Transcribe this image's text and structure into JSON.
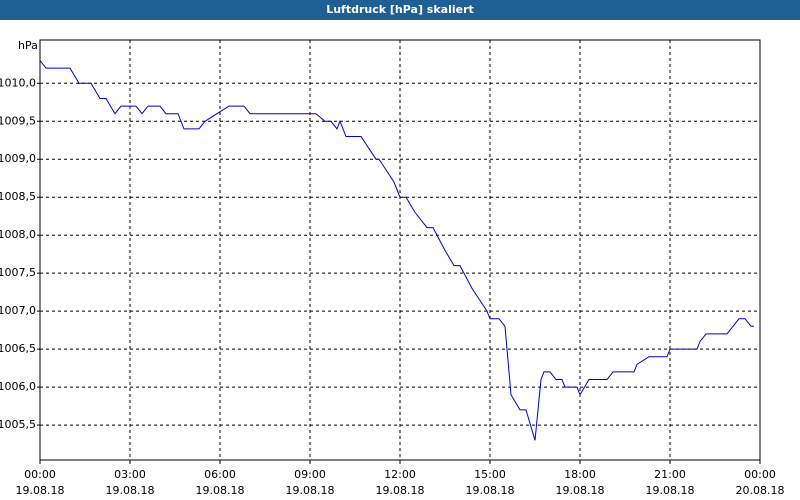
{
  "chart_data": {
    "type": "line",
    "title": "Luftdruck [hPa] skaliert",
    "y_label": "hPa",
    "x": [
      0,
      0.2,
      1.0,
      1.3,
      1.7,
      2.0,
      2.2,
      2.5,
      2.7,
      3.2,
      3.4,
      3.6,
      4.0,
      4.2,
      4.6,
      4.8,
      5.3,
      5.5,
      5.9,
      6.3,
      6.8,
      7.0,
      9.2,
      9.5,
      9.7,
      9.9,
      10.0,
      10.2,
      10.7,
      11.2,
      11.3,
      11.8,
      12.0,
      12.2,
      12.5,
      12.9,
      13.1,
      13.5,
      13.8,
      14.0,
      14.4,
      14.9,
      15.0,
      15.3,
      15.5,
      15.7,
      16.0,
      16.2,
      16.5,
      16.7,
      16.8,
      17.0,
      17.2,
      17.4,
      17.5,
      17.9,
      18.0,
      18.3,
      18.9,
      19.1,
      19.8,
      19.9,
      20.3,
      20.9,
      21.0,
      21.9,
      22.0,
      22.2,
      22.9,
      23.1,
      23.3,
      23.5,
      23.7,
      23.8
    ],
    "series": [
      {
        "name": "Luftdruck",
        "color": "#0000cc",
        "values": [
          1010.3,
          1010.2,
          1010.2,
          1010.0,
          1010.0,
          1009.8,
          1009.8,
          1009.6,
          1009.7,
          1009.7,
          1009.6,
          1009.7,
          1009.7,
          1009.6,
          1009.6,
          1009.4,
          1009.4,
          1009.5,
          1009.6,
          1009.7,
          1009.7,
          1009.6,
          1009.6,
          1009.5,
          1009.5,
          1009.4,
          1009.5,
          1009.3,
          1009.3,
          1009.0,
          1009.0,
          1008.7,
          1008.5,
          1008.5,
          1008.3,
          1008.1,
          1008.1,
          1007.8,
          1007.6,
          1007.6,
          1007.3,
          1007.0,
          1006.9,
          1006.9,
          1006.8,
          1005.9,
          1005.7,
          1005.7,
          1005.3,
          1006.1,
          1006.2,
          1006.2,
          1006.1,
          1006.1,
          1006.0,
          1006.0,
          1005.9,
          1006.1,
          1006.1,
          1006.2,
          1006.2,
          1006.3,
          1006.4,
          1006.4,
          1006.5,
          1006.5,
          1006.6,
          1006.7,
          1006.7,
          1006.8,
          1006.9,
          1006.9,
          1006.8,
          1006.8
        ]
      }
    ],
    "xlim": [
      0,
      24
    ],
    "xticks": [
      {
        "value": 0,
        "label": "00:00"
      },
      {
        "value": 3,
        "label": "03:00"
      },
      {
        "value": 6,
        "label": "06:00"
      },
      {
        "value": 9,
        "label": "09:00"
      },
      {
        "value": 12,
        "label": "12:00"
      },
      {
        "value": 15,
        "label": "15:00"
      },
      {
        "value": 18,
        "label": "18:00"
      },
      {
        "value": 21,
        "label": "21:00"
      },
      {
        "value": 24,
        "label": "00:00"
      }
    ],
    "xtick_dates": [
      "19.08.18",
      "19.08.18",
      "19.08.18",
      "19.08.18",
      "19.08.18",
      "19.08.18",
      "19.08.18",
      "19.08.18",
      "20.08.18"
    ],
    "ylim": [
      1005.04,
      1010.57
    ],
    "yticks": [
      {
        "value": 1005.5,
        "label": "1005,5"
      },
      {
        "value": 1006,
        "label": "1006,0"
      },
      {
        "value": 1006.5,
        "label": "1006,5"
      },
      {
        "value": 1007,
        "label": "1007,0"
      },
      {
        "value": 1007.5,
        "label": "1007,5"
      },
      {
        "value": 1008,
        "label": "1008,0"
      },
      {
        "value": 1008.5,
        "label": "1008,5"
      },
      {
        "value": 1009,
        "label": "1009,0"
      },
      {
        "value": 1009.5,
        "label": "1009,5"
      },
      {
        "value": 1010,
        "label": "1010,0"
      }
    ],
    "grid": true
  }
}
